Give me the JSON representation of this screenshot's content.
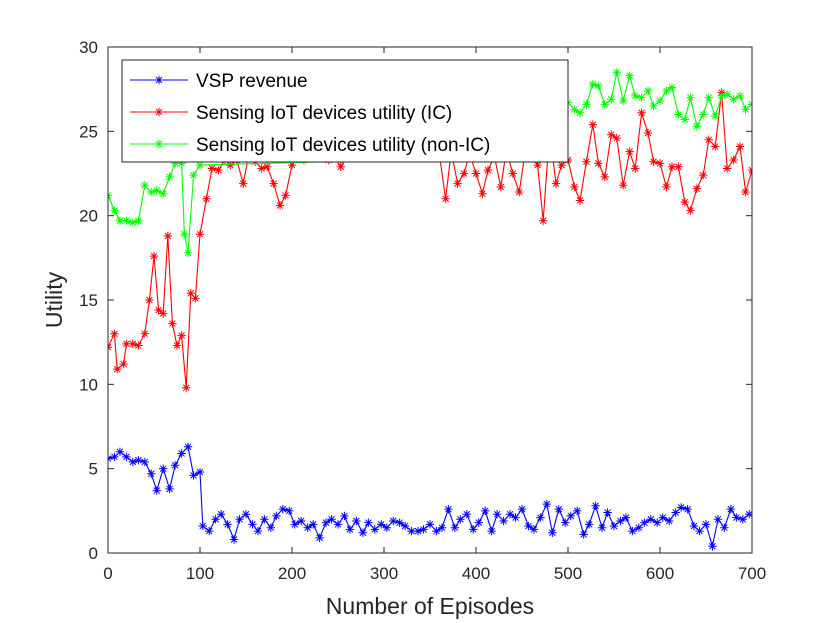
{
  "chart_data": {
    "type": "line",
    "xlabel": "Number of Episodes",
    "ylabel": "Utility",
    "xlim": [
      0,
      700
    ],
    "ylim": [
      0,
      30
    ],
    "xticks": [
      0,
      100,
      200,
      300,
      400,
      500,
      600,
      700
    ],
    "yticks": [
      0,
      5,
      10,
      15,
      20,
      25,
      30
    ],
    "grid": false,
    "legend_position": "top-left",
    "series": [
      {
        "name": "VSP revenue",
        "color": "#0000ff",
        "marker": "asterisk",
        "points": [
          [
            0,
            5.6
          ],
          [
            7,
            5.7
          ],
          [
            13,
            6.0
          ],
          [
            20,
            5.7
          ],
          [
            27,
            5.4
          ],
          [
            33,
            5.5
          ],
          [
            40,
            5.4
          ],
          [
            47,
            4.7
          ],
          [
            53,
            3.7
          ],
          [
            60,
            5.0
          ],
          [
            67,
            3.8
          ],
          [
            73,
            5.2
          ],
          [
            80,
            5.9
          ],
          [
            87,
            6.3
          ],
          [
            93,
            4.6
          ],
          [
            100,
            4.8
          ],
          [
            103,
            1.6
          ],
          [
            110,
            1.3
          ],
          [
            117,
            2.0
          ],
          [
            123,
            2.3
          ],
          [
            130,
            1.7
          ],
          [
            137,
            0.8
          ],
          [
            143,
            2.0
          ],
          [
            150,
            2.3
          ],
          [
            157,
            1.7
          ],
          [
            163,
            1.3
          ],
          [
            170,
            2.0
          ],
          [
            177,
            1.5
          ],
          [
            183,
            2.2
          ],
          [
            190,
            2.6
          ],
          [
            197,
            2.5
          ],
          [
            203,
            1.7
          ],
          [
            210,
            1.9
          ],
          [
            217,
            1.5
          ],
          [
            223,
            1.7
          ],
          [
            230,
            0.9
          ],
          [
            237,
            1.8
          ],
          [
            243,
            2.0
          ],
          [
            250,
            1.7
          ],
          [
            257,
            2.2
          ],
          [
            263,
            1.4
          ],
          [
            270,
            1.9
          ],
          [
            277,
            1.2
          ],
          [
            283,
            1.8
          ],
          [
            290,
            1.4
          ],
          [
            297,
            1.7
          ],
          [
            303,
            1.5
          ],
          [
            310,
            1.9
          ],
          [
            317,
            1.8
          ],
          [
            323,
            1.6
          ],
          [
            330,
            1.3
          ],
          [
            337,
            1.3
          ],
          [
            343,
            1.4
          ],
          [
            350,
            1.7
          ],
          [
            357,
            1.3
          ],
          [
            363,
            1.5
          ],
          [
            370,
            2.6
          ],
          [
            377,
            1.5
          ],
          [
            383,
            2.0
          ],
          [
            390,
            2.3
          ],
          [
            397,
            1.4
          ],
          [
            403,
            1.8
          ],
          [
            410,
            2.5
          ],
          [
            417,
            1.3
          ],
          [
            423,
            2.3
          ],
          [
            430,
            1.9
          ],
          [
            437,
            2.3
          ],
          [
            443,
            2.1
          ],
          [
            450,
            2.6
          ],
          [
            457,
            1.6
          ],
          [
            463,
            1.4
          ],
          [
            470,
            2.1
          ],
          [
            477,
            2.9
          ],
          [
            483,
            1.2
          ],
          [
            490,
            2.6
          ],
          [
            497,
            1.8
          ],
          [
            503,
            2.2
          ],
          [
            510,
            2.5
          ],
          [
            517,
            1.1
          ],
          [
            523,
            1.7
          ],
          [
            530,
            2.8
          ],
          [
            537,
            1.5
          ],
          [
            543,
            2.4
          ],
          [
            550,
            1.6
          ],
          [
            557,
            1.9
          ],
          [
            563,
            2.1
          ],
          [
            570,
            1.3
          ],
          [
            577,
            1.5
          ],
          [
            583,
            1.8
          ],
          [
            590,
            2.0
          ],
          [
            597,
            1.8
          ],
          [
            603,
            2.1
          ],
          [
            610,
            1.9
          ],
          [
            617,
            2.4
          ],
          [
            623,
            2.7
          ],
          [
            630,
            2.6
          ],
          [
            637,
            1.6
          ],
          [
            643,
            1.3
          ],
          [
            650,
            1.7
          ],
          [
            657,
            0.4
          ],
          [
            663,
            2.0
          ],
          [
            670,
            1.5
          ],
          [
            677,
            2.6
          ],
          [
            683,
            2.1
          ],
          [
            690,
            2.0
          ],
          [
            697,
            2.3
          ]
        ]
      },
      {
        "name": "Sensing IoT devices utility (IC)",
        "color": "#ff0000",
        "marker": "asterisk",
        "points": [
          [
            0,
            12.2
          ],
          [
            7,
            13.0
          ],
          [
            10,
            10.9
          ],
          [
            17,
            11.2
          ],
          [
            20,
            12.4
          ],
          [
            27,
            12.4
          ],
          [
            33,
            12.3
          ],
          [
            40,
            13.0
          ],
          [
            45,
            15.0
          ],
          [
            50,
            17.6
          ],
          [
            55,
            14.4
          ],
          [
            60,
            14.2
          ],
          [
            65,
            18.8
          ],
          [
            70,
            13.6
          ],
          [
            75,
            12.3
          ],
          [
            80,
            12.9
          ],
          [
            85,
            9.8
          ],
          [
            90,
            15.4
          ],
          [
            95,
            15.1
          ],
          [
            100,
            18.9
          ],
          [
            107,
            21.0
          ],
          [
            113,
            22.8
          ],
          [
            120,
            22.7
          ],
          [
            127,
            23.3
          ],
          [
            133,
            23.0
          ],
          [
            140,
            23.3
          ],
          [
            147,
            21.9
          ],
          [
            153,
            23.6
          ],
          [
            160,
            23.2
          ],
          [
            167,
            22.8
          ],
          [
            173,
            22.9
          ],
          [
            180,
            21.9
          ],
          [
            187,
            20.6
          ],
          [
            193,
            21.2
          ],
          [
            200,
            23.0
          ],
          [
            207,
            23.5
          ],
          [
            213,
            23.3
          ],
          [
            220,
            23.8
          ],
          [
            227,
            23.5
          ],
          [
            233,
            23.6
          ],
          [
            240,
            23.3
          ],
          [
            247,
            23.4
          ],
          [
            253,
            22.9
          ],
          [
            260,
            23.5
          ],
          [
            267,
            23.7
          ],
          [
            273,
            23.8
          ],
          [
            280,
            23.5
          ],
          [
            287,
            23.6
          ],
          [
            293,
            23.7
          ],
          [
            300,
            23.4
          ],
          [
            307,
            23.5
          ],
          [
            313,
            23.6
          ],
          [
            320,
            23.6
          ],
          [
            327,
            23.5
          ],
          [
            333,
            23.4
          ],
          [
            340,
            23.5
          ],
          [
            347,
            23.6
          ],
          [
            353,
            23.7
          ],
          [
            360,
            23.7
          ],
          [
            367,
            21.0
          ],
          [
            373,
            23.8
          ],
          [
            380,
            21.9
          ],
          [
            387,
            22.5
          ],
          [
            393,
            23.7
          ],
          [
            400,
            22.5
          ],
          [
            407,
            21.3
          ],
          [
            413,
            22.7
          ],
          [
            420,
            23.5
          ],
          [
            427,
            21.7
          ],
          [
            433,
            23.9
          ],
          [
            440,
            22.5
          ],
          [
            447,
            21.4
          ],
          [
            453,
            23.6
          ],
          [
            460,
            24.3
          ],
          [
            467,
            23.0
          ],
          [
            473,
            19.7
          ],
          [
            480,
            25.0
          ],
          [
            487,
            21.9
          ],
          [
            493,
            23.0
          ],
          [
            500,
            23.3
          ],
          [
            507,
            21.7
          ],
          [
            513,
            20.9
          ],
          [
            520,
            23.2
          ],
          [
            527,
            25.4
          ],
          [
            533,
            23.1
          ],
          [
            540,
            22.3
          ],
          [
            547,
            24.8
          ],
          [
            553,
            24.6
          ],
          [
            560,
            21.8
          ],
          [
            567,
            23.8
          ],
          [
            573,
            22.8
          ],
          [
            580,
            26.1
          ],
          [
            587,
            24.9
          ],
          [
            593,
            23.2
          ],
          [
            600,
            23.1
          ],
          [
            607,
            21.7
          ],
          [
            613,
            22.9
          ],
          [
            620,
            22.9
          ],
          [
            627,
            20.8
          ],
          [
            633,
            20.3
          ],
          [
            640,
            21.6
          ],
          [
            647,
            22.4
          ],
          [
            653,
            24.5
          ],
          [
            660,
            24.1
          ],
          [
            667,
            27.3
          ],
          [
            673,
            22.8
          ],
          [
            680,
            23.3
          ],
          [
            687,
            24.1
          ],
          [
            693,
            21.4
          ],
          [
            700,
            22.7
          ]
        ]
      },
      {
        "name": "Sensing IoT devices utility (non-IC)",
        "color": "#00ff00",
        "marker": "asterisk",
        "points": [
          [
            0,
            21.2
          ],
          [
            7,
            20.3
          ],
          [
            13,
            19.7
          ],
          [
            20,
            19.7
          ],
          [
            27,
            19.6
          ],
          [
            33,
            19.7
          ],
          [
            40,
            21.8
          ],
          [
            47,
            21.4
          ],
          [
            53,
            21.5
          ],
          [
            60,
            21.3
          ],
          [
            67,
            22.3
          ],
          [
            73,
            23.1
          ],
          [
            80,
            23.1
          ],
          [
            83,
            18.9
          ],
          [
            87,
            17.8
          ],
          [
            93,
            22.4
          ],
          [
            100,
            23.0
          ],
          [
            373,
            23.4
          ],
          [
            380,
            23.6
          ],
          [
            473,
            23.6
          ],
          [
            480,
            24.5
          ],
          [
            487,
            26.0
          ],
          [
            493,
            26.5
          ],
          [
            500,
            26.7
          ],
          [
            507,
            26.3
          ],
          [
            513,
            26.1
          ],
          [
            520,
            26.6
          ],
          [
            527,
            27.8
          ],
          [
            533,
            27.7
          ],
          [
            540,
            26.6
          ],
          [
            547,
            26.9
          ],
          [
            553,
            28.5
          ],
          [
            560,
            26.8
          ],
          [
            567,
            28.3
          ],
          [
            573,
            27.1
          ],
          [
            580,
            27.0
          ],
          [
            587,
            27.4
          ],
          [
            593,
            26.5
          ],
          [
            600,
            26.8
          ],
          [
            607,
            27.4
          ],
          [
            613,
            27.6
          ],
          [
            620,
            26.0
          ],
          [
            627,
            25.7
          ],
          [
            633,
            27.0
          ],
          [
            640,
            25.3
          ],
          [
            647,
            26.0
          ],
          [
            653,
            27.0
          ],
          [
            660,
            25.9
          ],
          [
            667,
            27.1
          ],
          [
            673,
            27.2
          ],
          [
            680,
            26.9
          ],
          [
            687,
            27.1
          ],
          [
            693,
            26.3
          ],
          [
            700,
            26.6
          ]
        ]
      }
    ]
  }
}
